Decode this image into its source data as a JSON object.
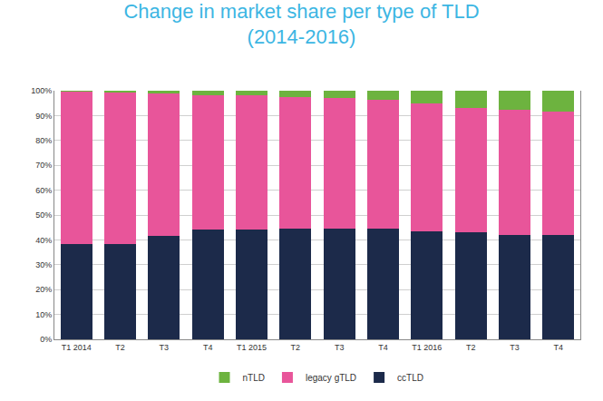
{
  "chart_data": {
    "type": "bar",
    "stacked": true,
    "title": "Change in market share per type of TLD",
    "subtitle": "(2014-2016)",
    "categories": [
      "T1 2014",
      "T2",
      "T3",
      "T4",
      "T1 2015",
      "T2",
      "T3",
      "T4",
      "T1 2016",
      "T2",
      "T3",
      "T4"
    ],
    "series": [
      {
        "name": "ccTLD",
        "color": "#1c2a4a",
        "values": [
          38.5,
          38.5,
          41.5,
          44,
          44,
          44.5,
          44.5,
          44.5,
          43.5,
          43,
          42,
          42
        ]
      },
      {
        "name": "legacy gTLD",
        "color": "#e8559a",
        "values": [
          61.2,
          60.8,
          57.3,
          54.3,
          54,
          53,
          52.5,
          51.7,
          51.3,
          50,
          50.3,
          49.7
        ]
      },
      {
        "name": "nTLD",
        "color": "#6db33f",
        "values": [
          0.3,
          0.7,
          1.2,
          1.7,
          2,
          2.5,
          3,
          3.8,
          5.2,
          7,
          7.7,
          8.3
        ]
      }
    ],
    "ylim": [
      0,
      100
    ],
    "yticks": [
      {
        "value": 0,
        "label": "0%"
      },
      {
        "value": 10,
        "label": "10%"
      },
      {
        "value": 20,
        "label": "20%"
      },
      {
        "value": 30,
        "label": "30%"
      },
      {
        "value": 40,
        "label": "40%"
      },
      {
        "value": 50,
        "label": "50%"
      },
      {
        "value": 60,
        "label": "60%"
      },
      {
        "value": 70,
        "label": "70%"
      },
      {
        "value": 80,
        "label": "80%"
      },
      {
        "value": 90,
        "label": "90%"
      },
      {
        "value": 100,
        "label": "100%"
      }
    ],
    "grid": true,
    "legend": "bottom"
  }
}
